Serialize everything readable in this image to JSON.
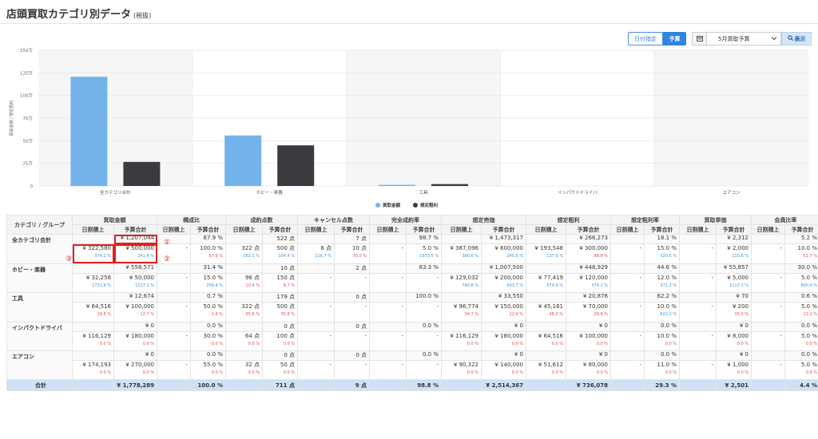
{
  "page": {
    "title": "店頭買取カテゴリ別データ",
    "subtitle": "(税抜)"
  },
  "toolbar": {
    "date_btn": "日付指定",
    "budget_btn": "予算",
    "period_select": "5月買取予算",
    "show_btn": "表示"
  },
  "colors": {
    "series1": "#73b3ea",
    "series2": "#3b3b3f",
    "accent": "#2e86de",
    "highlight": "#e02020"
  },
  "icons": {
    "calendar": "calendar-icon",
    "search": "search-icon",
    "chevron": "chevron-down-icon"
  },
  "chart_data": {
    "type": "bar",
    "categories": [
      "全カテゴリ合計",
      "ホビー・楽器",
      "工具",
      "インパクトドライバ",
      "エアコン"
    ],
    "ylabel": "買取金額 / 想定粗利",
    "ylim": [
      0,
      1500000
    ],
    "yticks": [
      "0",
      "25万",
      "50万",
      "75万",
      "100万",
      "125万",
      "150万"
    ],
    "series": [
      {
        "name": "買取金額",
        "values": [
          1207044,
          558571,
          12674,
          0,
          0
        ]
      },
      {
        "name": "想定粗利",
        "values": [
          266273,
          448929,
          20876,
          0,
          0
        ]
      }
    ],
    "legend": "bottom",
    "grid": true
  },
  "table": {
    "groups": [
      "カテゴリ / グループ",
      "買取金額",
      "構成比",
      "成約点数",
      "キャンセル点数",
      "完全成約率",
      "想定売価",
      "想定粗利",
      "想定粗利率",
      "買取単価",
      "会員比率"
    ],
    "sub": [
      "日割積上",
      "予算合計"
    ],
    "rows": [
      {
        "name": "全カテゴリ合計",
        "top": [
          "",
          "¥ 1,207,044",
          "",
          "67.9 %",
          "",
          "522 点",
          "",
          "7 点",
          "",
          "98.7 %",
          "",
          "¥ 1,473,317",
          "",
          "¥ 266,273",
          "",
          "18.1 %",
          "",
          "¥ 2,312",
          "",
          "5.2 %"
        ],
        "det": [
          [
            "¥ 322,580",
            "374.2 %",
            "b"
          ],
          [
            "¥ 500,000",
            "241.4 %",
            "b"
          ],
          [
            "-",
            "",
            ""
          ],
          [
            "100.0 %",
            "67.9 %",
            "r"
          ],
          [
            "322 点",
            "162.1 %",
            "b"
          ],
          [
            "500 点",
            "104.4 %",
            "b"
          ],
          [
            "6 点",
            "116.7 %",
            "b"
          ],
          [
            "10 点",
            "70.0 %",
            "r"
          ],
          [
            "-",
            "",
            ""
          ],
          [
            "5.0 %",
            "1973.5 %",
            "b"
          ],
          [
            "¥ 387,096",
            "380.6 %",
            "b"
          ],
          [
            "¥ 600,000",
            "245.6 %",
            "b"
          ],
          [
            "¥ 193,548",
            "137.6 %",
            "b"
          ],
          [
            "¥ 300,000",
            "88.8 %",
            "r"
          ],
          [
            "-",
            "",
            ""
          ],
          [
            "15.0 %",
            "120.5 %",
            "b"
          ],
          [
            "-",
            "",
            ""
          ],
          [
            "¥ 2,000",
            "115.6 %",
            "b"
          ],
          [
            "-",
            "",
            ""
          ],
          [
            "10.0 %",
            "51.7 %",
            "r"
          ]
        ]
      },
      {
        "name": "ホビー・楽器",
        "top": [
          "",
          "¥ 558,571",
          "",
          "31.4 %",
          "",
          "10 点",
          "",
          "2 点",
          "",
          "83.3 %",
          "",
          "¥ 1,007,500",
          "",
          "¥ 448,929",
          "",
          "44.6 %",
          "",
          "¥ 55,857",
          "",
          "30.0 %"
        ],
        "det": [
          [
            "¥ 32,258",
            "1731.6 %",
            "b"
          ],
          [
            "¥ 50,000",
            "1117.1 %",
            "b"
          ],
          [
            "-",
            "",
            ""
          ],
          [
            "15.0 %",
            "209.4 %",
            "b"
          ],
          [
            "96 点",
            "10.4 %",
            "r"
          ],
          [
            "150 点",
            "6.7 %",
            "r"
          ],
          [
            "-",
            "",
            ""
          ],
          [
            "-",
            "",
            ""
          ],
          [
            "-",
            "",
            ""
          ],
          [
            "-",
            "",
            ""
          ],
          [
            "¥ 129,032",
            "780.8 %",
            "b"
          ],
          [
            "¥ 200,000",
            "503.7 %",
            "b"
          ],
          [
            "¥ 77,419",
            "579.9 %",
            "b"
          ],
          [
            "¥ 120,000",
            "374.1 %",
            "b"
          ],
          [
            "-",
            "",
            ""
          ],
          [
            "12.0 %",
            "371.3 %",
            "b"
          ],
          [
            "-",
            "",
            ""
          ],
          [
            "¥ 5,000",
            "1117.1 %",
            "b"
          ],
          [
            "-",
            "",
            ""
          ],
          [
            "5.0 %",
            "600.0 %",
            "b"
          ]
        ]
      },
      {
        "name": "工具",
        "top": [
          "",
          "¥ 12,674",
          "",
          "0.7 %",
          "",
          "179 点",
          "",
          "0 点",
          "",
          "100.0 %",
          "",
          "¥ 33,550",
          "",
          "¥ 20,876",
          "",
          "62.2 %",
          "",
          "¥ 70",
          "",
          "0.6 %"
        ],
        "det": [
          [
            "¥ 64,516",
            "19.6 %",
            "r"
          ],
          [
            "¥ 100,000",
            "12.7 %",
            "r"
          ],
          [
            "-",
            "",
            ""
          ],
          [
            "50.0 %",
            "1.4 %",
            "r"
          ],
          [
            "322 点",
            "55.6 %",
            "r"
          ],
          [
            "500 点",
            "35.8 %",
            "r"
          ],
          [
            "-",
            "",
            ""
          ],
          [
            "-",
            "",
            ""
          ],
          [
            "-",
            "",
            ""
          ],
          [
            "-",
            "",
            ""
          ],
          [
            "¥ 96,774",
            "34.7 %",
            "r"
          ],
          [
            "¥ 150,000",
            "22.4 %",
            "r"
          ],
          [
            "¥ 45,161",
            "46.2 %",
            "r"
          ],
          [
            "¥ 70,000",
            "29.8 %",
            "r"
          ],
          [
            "-",
            "",
            ""
          ],
          [
            "10.0 %",
            "622.2 %",
            "b"
          ],
          [
            "-",
            "",
            ""
          ],
          [
            "¥ 200",
            "35.0 %",
            "r"
          ],
          [
            "-",
            "",
            ""
          ],
          [
            "5.0 %",
            "11.2 %",
            "r"
          ]
        ]
      },
      {
        "name": "インパクトドライバ",
        "top": [
          "",
          "¥ 0",
          "",
          "0.0 %",
          "",
          "0 点",
          "",
          "0 点",
          "",
          "0.0 %",
          "",
          "¥ 0",
          "",
          "¥ 0",
          "",
          "0.0 %",
          "",
          "¥ 0",
          "",
          "0.0 %"
        ],
        "det": [
          [
            "¥ 116,129",
            "0.0 %",
            "r"
          ],
          [
            "¥ 180,000",
            "0.0 %",
            "r"
          ],
          [
            "-",
            "",
            ""
          ],
          [
            "30.0 %",
            "0.0 %",
            "r"
          ],
          [
            "64 点",
            "0.0 %",
            "r"
          ],
          [
            "100 点",
            "0.0 %",
            "r"
          ],
          [
            "-",
            "",
            ""
          ],
          [
            "-",
            "",
            ""
          ],
          [
            "-",
            "",
            ""
          ],
          [
            "-",
            "",
            ""
          ],
          [
            "¥ 116,129",
            "0.0 %",
            "r"
          ],
          [
            "¥ 180,000",
            "0.0 %",
            "r"
          ],
          [
            "¥ 64,516",
            "0.0 %",
            "r"
          ],
          [
            "¥ 100,000",
            "0.0 %",
            "r"
          ],
          [
            "-",
            "",
            ""
          ],
          [
            "10.0 %",
            "0.0 %",
            "r"
          ],
          [
            "-",
            "",
            ""
          ],
          [
            "¥ 8,000",
            "0.0 %",
            "r"
          ],
          [
            "-",
            "",
            ""
          ],
          [
            "5.0 %",
            "0.0 %",
            "r"
          ]
        ]
      },
      {
        "name": "エアコン",
        "top": [
          "",
          "¥ 0",
          "",
          "0.0 %",
          "",
          "0 点",
          "",
          "0 点",
          "",
          "0.0 %",
          "",
          "¥ 0",
          "",
          "¥ 0",
          "",
          "0.0 %",
          "",
          "¥ 0",
          "",
          "0.0 %"
        ],
        "det": [
          [
            "¥ 174,193",
            "0.0 %",
            "r"
          ],
          [
            "¥ 270,000",
            "0.0 %",
            "r"
          ],
          [
            "-",
            "",
            ""
          ],
          [
            "55.0 %",
            "0.0 %",
            "r"
          ],
          [
            "32 点",
            "0.0 %",
            "r"
          ],
          [
            "50 点",
            "0.0 %",
            "r"
          ],
          [
            "-",
            "",
            ""
          ],
          [
            "-",
            "",
            ""
          ],
          [
            "-",
            "",
            ""
          ],
          [
            "-",
            "",
            ""
          ],
          [
            "¥ 90,322",
            "0.0 %",
            "r"
          ],
          [
            "¥ 140,000",
            "0.0 %",
            "r"
          ],
          [
            "¥ 51,612",
            "0.0 %",
            "r"
          ],
          [
            "¥ 80,000",
            "0.0 %",
            "r"
          ],
          [
            "-",
            "",
            ""
          ],
          [
            "11.0 %",
            "0.0 %",
            "r"
          ],
          [
            "-",
            "",
            ""
          ],
          [
            "¥ 1,000",
            "0.0 %",
            "r"
          ],
          [
            "-",
            "",
            ""
          ],
          [
            "5.0 %",
            "0.0 %",
            "r"
          ]
        ]
      }
    ],
    "total": {
      "name": "合計",
      "cells": [
        "",
        "¥ 1,778,289",
        "",
        "100.0 %",
        "",
        "711 点",
        "",
        "9 点",
        "",
        "98.8 %",
        "",
        "¥ 2,514,367",
        "",
        "¥ 736,078",
        "",
        "29.3 %",
        "",
        "¥ 2,501",
        "",
        "4.4 %"
      ]
    }
  },
  "markers": [
    "①",
    "②",
    "③"
  ]
}
